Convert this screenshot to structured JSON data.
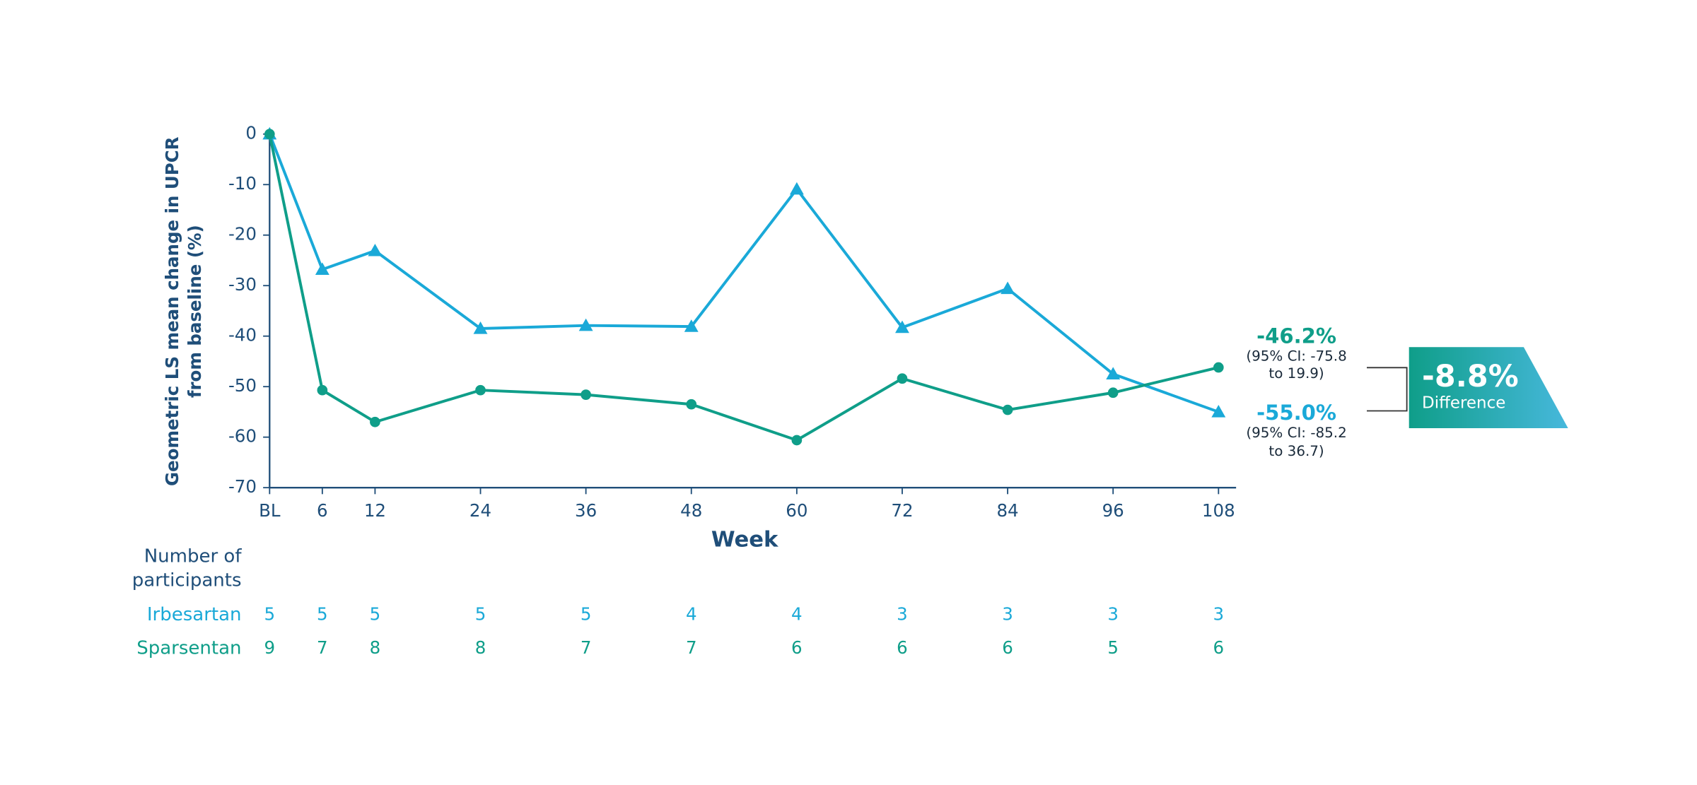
{
  "chart_data": {
    "type": "line",
    "y_label": [
      "Geometric LS mean change in UPCR",
      "from baseline (%)"
    ],
    "x_label": "Week",
    "x": [
      0,
      6,
      12,
      24,
      36,
      48,
      60,
      72,
      84,
      96,
      108
    ],
    "xlim": [
      0,
      110
    ],
    "xticks": [
      {
        "value": 0,
        "label": "BL"
      },
      6,
      12,
      24,
      36,
      48,
      60,
      72,
      84,
      96,
      108
    ],
    "ylim": [
      -70,
      0
    ],
    "yticks": [
      0,
      -10,
      -20,
      -30,
      -40,
      -50,
      -60,
      -70
    ],
    "series": [
      {
        "name": "Irbesartan",
        "color": "#1aa9d8",
        "marker": "triangle",
        "values": [
          0,
          -26.8,
          -23.1,
          -38.5,
          -37.9,
          -38.1,
          -10.9,
          -38.3,
          -30.6,
          -47.5,
          -55.0
        ]
      },
      {
        "name": "Sparsentan",
        "color": "#0f9e89",
        "marker": "circle",
        "values": [
          0,
          -50.7,
          -57.0,
          -50.7,
          -51.6,
          -53.5,
          -60.6,
          -48.4,
          -54.6,
          -51.2,
          -46.2
        ]
      }
    ],
    "participants": {
      "label": [
        "Number of",
        "participants"
      ],
      "rows": [
        [
          "5",
          "5",
          "5",
          "5",
          "5",
          "4",
          "4",
          "3",
          "3",
          "3",
          "3"
        ],
        [
          "9",
          "7",
          "8",
          "8",
          "7",
          "7",
          "6",
          "6",
          "6",
          "5",
          "6"
        ]
      ]
    },
    "annotations": {
      "sparsentan_end": {
        "text": "-46.2%",
        "ci": [
          "(95% CI: -75.8",
          "to 19.9)"
        ]
      },
      "irbesartan_end": {
        "text": "-55.0%",
        "ci": [
          "(95% CI: -85.2",
          "to 36.7)"
        ]
      },
      "difference": {
        "text": "-8.8%",
        "label": "Difference"
      }
    }
  }
}
